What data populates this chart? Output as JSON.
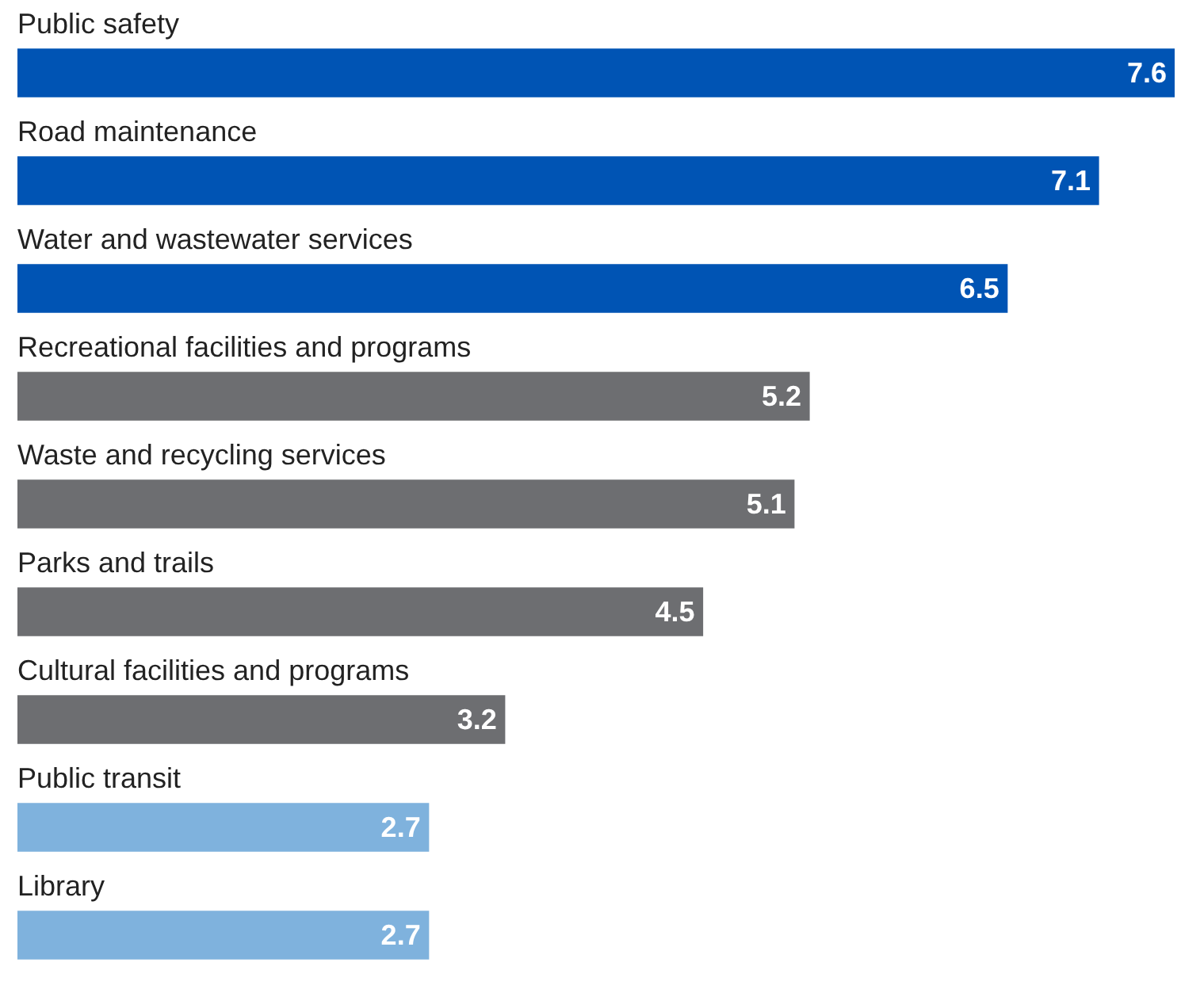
{
  "chart_data": {
    "type": "bar",
    "orientation": "horizontal",
    "categories": [
      "Public safety",
      "Road maintenance",
      "Water and wastewater services",
      "Recreational facilities and programs",
      "Waste and recycling services",
      "Parks and trails",
      "Cultural facilities and programs",
      "Public transit",
      "Library"
    ],
    "values": [
      7.6,
      7.1,
      6.5,
      5.2,
      5.1,
      4.5,
      3.2,
      2.7,
      2.7
    ],
    "colors": [
      "#0054b4",
      "#0054b4",
      "#0054b4",
      "#6d6e71",
      "#6d6e71",
      "#6d6e71",
      "#6d6e71",
      "#7fb2dd",
      "#7fb2dd"
    ],
    "data_labels": true,
    "legend": false
  }
}
